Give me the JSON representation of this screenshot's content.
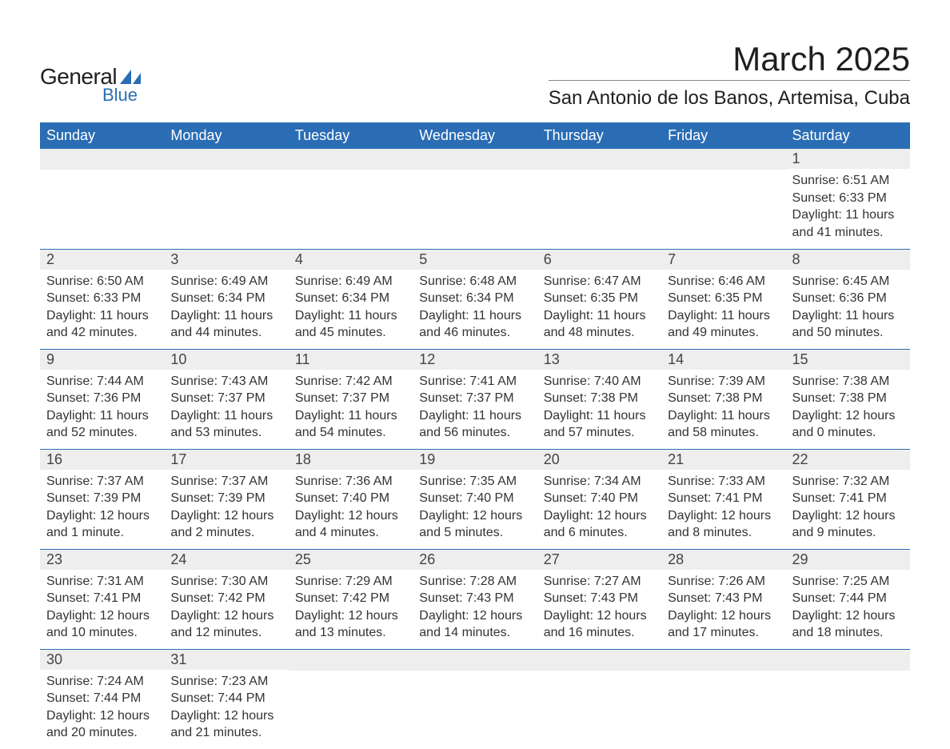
{
  "brand": {
    "text_general": "General",
    "text_blue": "Blue",
    "logo_color": "#2a6db4"
  },
  "header": {
    "month_title": "March 2025",
    "location": "San Antonio de los Banos, Artemisa, Cuba"
  },
  "styling": {
    "header_bg": "#2a6db4",
    "header_text": "#ffffff",
    "daynum_bg": "#eeeeee",
    "row_border": "#2a6db4",
    "body_text": "#333333",
    "page_bg": "#ffffff",
    "title_fontsize": 42,
    "location_fontsize": 24,
    "dayhead_fontsize": 18,
    "content_fontsize": 16
  },
  "day_headers": [
    "Sunday",
    "Monday",
    "Tuesday",
    "Wednesday",
    "Thursday",
    "Friday",
    "Saturday"
  ],
  "weeks": [
    [
      null,
      null,
      null,
      null,
      null,
      null,
      {
        "n": "1",
        "sunrise": "Sunrise: 6:51 AM",
        "sunset": "Sunset: 6:33 PM",
        "daylight": "Daylight: 11 hours and 41 minutes."
      }
    ],
    [
      {
        "n": "2",
        "sunrise": "Sunrise: 6:50 AM",
        "sunset": "Sunset: 6:33 PM",
        "daylight": "Daylight: 11 hours and 42 minutes."
      },
      {
        "n": "3",
        "sunrise": "Sunrise: 6:49 AM",
        "sunset": "Sunset: 6:34 PM",
        "daylight": "Daylight: 11 hours and 44 minutes."
      },
      {
        "n": "4",
        "sunrise": "Sunrise: 6:49 AM",
        "sunset": "Sunset: 6:34 PM",
        "daylight": "Daylight: 11 hours and 45 minutes."
      },
      {
        "n": "5",
        "sunrise": "Sunrise: 6:48 AM",
        "sunset": "Sunset: 6:34 PM",
        "daylight": "Daylight: 11 hours and 46 minutes."
      },
      {
        "n": "6",
        "sunrise": "Sunrise: 6:47 AM",
        "sunset": "Sunset: 6:35 PM",
        "daylight": "Daylight: 11 hours and 48 minutes."
      },
      {
        "n": "7",
        "sunrise": "Sunrise: 6:46 AM",
        "sunset": "Sunset: 6:35 PM",
        "daylight": "Daylight: 11 hours and 49 minutes."
      },
      {
        "n": "8",
        "sunrise": "Sunrise: 6:45 AM",
        "sunset": "Sunset: 6:36 PM",
        "daylight": "Daylight: 11 hours and 50 minutes."
      }
    ],
    [
      {
        "n": "9",
        "sunrise": "Sunrise: 7:44 AM",
        "sunset": "Sunset: 7:36 PM",
        "daylight": "Daylight: 11 hours and 52 minutes."
      },
      {
        "n": "10",
        "sunrise": "Sunrise: 7:43 AM",
        "sunset": "Sunset: 7:37 PM",
        "daylight": "Daylight: 11 hours and 53 minutes."
      },
      {
        "n": "11",
        "sunrise": "Sunrise: 7:42 AM",
        "sunset": "Sunset: 7:37 PM",
        "daylight": "Daylight: 11 hours and 54 minutes."
      },
      {
        "n": "12",
        "sunrise": "Sunrise: 7:41 AM",
        "sunset": "Sunset: 7:37 PM",
        "daylight": "Daylight: 11 hours and 56 minutes."
      },
      {
        "n": "13",
        "sunrise": "Sunrise: 7:40 AM",
        "sunset": "Sunset: 7:38 PM",
        "daylight": "Daylight: 11 hours and 57 minutes."
      },
      {
        "n": "14",
        "sunrise": "Sunrise: 7:39 AM",
        "sunset": "Sunset: 7:38 PM",
        "daylight": "Daylight: 11 hours and 58 minutes."
      },
      {
        "n": "15",
        "sunrise": "Sunrise: 7:38 AM",
        "sunset": "Sunset: 7:38 PM",
        "daylight": "Daylight: 12 hours and 0 minutes."
      }
    ],
    [
      {
        "n": "16",
        "sunrise": "Sunrise: 7:37 AM",
        "sunset": "Sunset: 7:39 PM",
        "daylight": "Daylight: 12 hours and 1 minute."
      },
      {
        "n": "17",
        "sunrise": "Sunrise: 7:37 AM",
        "sunset": "Sunset: 7:39 PM",
        "daylight": "Daylight: 12 hours and 2 minutes."
      },
      {
        "n": "18",
        "sunrise": "Sunrise: 7:36 AM",
        "sunset": "Sunset: 7:40 PM",
        "daylight": "Daylight: 12 hours and 4 minutes."
      },
      {
        "n": "19",
        "sunrise": "Sunrise: 7:35 AM",
        "sunset": "Sunset: 7:40 PM",
        "daylight": "Daylight: 12 hours and 5 minutes."
      },
      {
        "n": "20",
        "sunrise": "Sunrise: 7:34 AM",
        "sunset": "Sunset: 7:40 PM",
        "daylight": "Daylight: 12 hours and 6 minutes."
      },
      {
        "n": "21",
        "sunrise": "Sunrise: 7:33 AM",
        "sunset": "Sunset: 7:41 PM",
        "daylight": "Daylight: 12 hours and 8 minutes."
      },
      {
        "n": "22",
        "sunrise": "Sunrise: 7:32 AM",
        "sunset": "Sunset: 7:41 PM",
        "daylight": "Daylight: 12 hours and 9 minutes."
      }
    ],
    [
      {
        "n": "23",
        "sunrise": "Sunrise: 7:31 AM",
        "sunset": "Sunset: 7:41 PM",
        "daylight": "Daylight: 12 hours and 10 minutes."
      },
      {
        "n": "24",
        "sunrise": "Sunrise: 7:30 AM",
        "sunset": "Sunset: 7:42 PM",
        "daylight": "Daylight: 12 hours and 12 minutes."
      },
      {
        "n": "25",
        "sunrise": "Sunrise: 7:29 AM",
        "sunset": "Sunset: 7:42 PM",
        "daylight": "Daylight: 12 hours and 13 minutes."
      },
      {
        "n": "26",
        "sunrise": "Sunrise: 7:28 AM",
        "sunset": "Sunset: 7:43 PM",
        "daylight": "Daylight: 12 hours and 14 minutes."
      },
      {
        "n": "27",
        "sunrise": "Sunrise: 7:27 AM",
        "sunset": "Sunset: 7:43 PM",
        "daylight": "Daylight: 12 hours and 16 minutes."
      },
      {
        "n": "28",
        "sunrise": "Sunrise: 7:26 AM",
        "sunset": "Sunset: 7:43 PM",
        "daylight": "Daylight: 12 hours and 17 minutes."
      },
      {
        "n": "29",
        "sunrise": "Sunrise: 7:25 AM",
        "sunset": "Sunset: 7:44 PM",
        "daylight": "Daylight: 12 hours and 18 minutes."
      }
    ],
    [
      {
        "n": "30",
        "sunrise": "Sunrise: 7:24 AM",
        "sunset": "Sunset: 7:44 PM",
        "daylight": "Daylight: 12 hours and 20 minutes."
      },
      {
        "n": "31",
        "sunrise": "Sunrise: 7:23 AM",
        "sunset": "Sunset: 7:44 PM",
        "daylight": "Daylight: 12 hours and 21 minutes."
      },
      null,
      null,
      null,
      null,
      null
    ]
  ]
}
